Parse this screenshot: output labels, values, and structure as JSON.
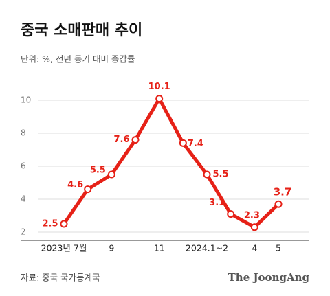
{
  "chart_data": {
    "type": "line",
    "title": "중국 소매판매 추이",
    "subtitle": "단위: %, 전년 동기 대비 증감률",
    "categories": [
      "2023년 7월",
      null,
      "9",
      null,
      "11",
      null,
      "2024.1~2",
      null,
      "4",
      "5"
    ],
    "series": [
      {
        "name": "소매판매",
        "color": "#e62117",
        "values": [
          2.5,
          4.6,
          5.5,
          7.6,
          10.1,
          7.4,
          5.5,
          3.1,
          2.3,
          3.7
        ]
      }
    ],
    "ylim": [
      1.5,
      11
    ],
    "yticks": [
      2,
      4,
      6,
      8,
      10
    ],
    "grid": true,
    "source": "자료: 중국 국가통계국",
    "credit": "The JoongAng"
  }
}
